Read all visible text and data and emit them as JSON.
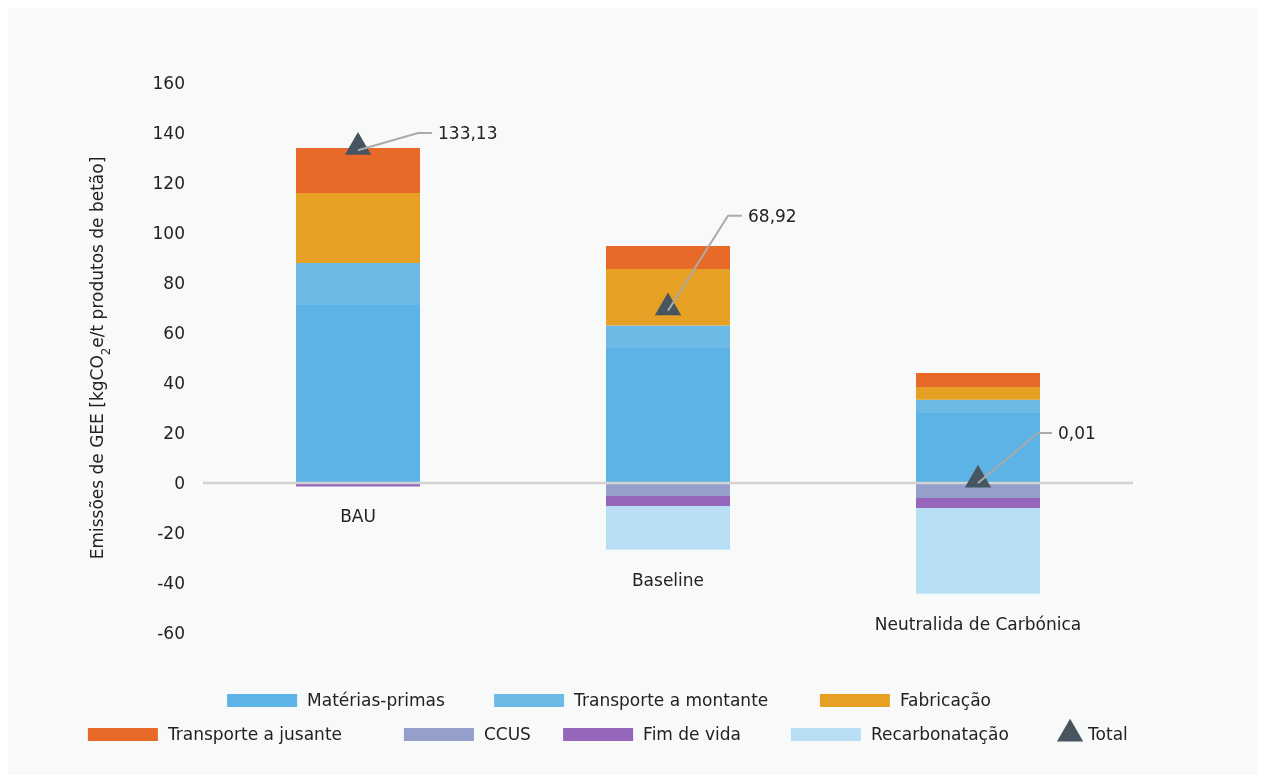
{
  "chart_data": {
    "type": "bar",
    "stacked": true,
    "ylabel": "Emissões de GEE [kgCO$_{2}$e/t produtos de betão]",
    "categories": [
      "BAU",
      "Baseline",
      "Neutralida de Carbónica"
    ],
    "ylim": [
      -60,
      160
    ],
    "yticks": [
      -60,
      -40,
      -20,
      0,
      20,
      40,
      60,
      80,
      100,
      120,
      140,
      160
    ],
    "grid": false,
    "legend": "bottom",
    "ref_lines": [
      {
        "axis": "y",
        "value": 0,
        "color": "#d3d3d3"
      }
    ],
    "series": [
      {
        "name": "Matérias-primas",
        "color": "#5db3e6",
        "values": [
          71.2,
          54,
          28
        ]
      },
      {
        "name": "Transporte a montante",
        "color": "#6bbbe6",
        "values": [
          16.8,
          9,
          5.3
        ]
      },
      {
        "name": "Fabricação",
        "color": "#e6a024",
        "values": [
          28,
          22.6,
          5.1
        ]
      },
      {
        "name": "Transporte a jusante",
        "color": "#e86a28",
        "values": [
          18,
          9.2,
          5.6
        ]
      },
      {
        "name": "CCUS",
        "color": "#94a0cb",
        "values": [
          0,
          -5.2,
          -6
        ]
      },
      {
        "name": "Fim de vida",
        "color": "#9566bb",
        "values": [
          -1.4,
          -4,
          -4
        ]
      },
      {
        "name": "Recarbonatação",
        "color": "#b8def5",
        "values": [
          0,
          -17.5,
          -34.3
        ]
      },
      {
        "name": "Total",
        "type": "scatter",
        "marker": "triangle",
        "color": "#46555f",
        "x": [
          "BAU",
          "Baseline",
          "Neutralida de Carbónica"
        ],
        "values": [
          133.13,
          68.92,
          0.01
        ],
        "value_labels": [
          "133,13",
          "68,92",
          "0,01"
        ]
      }
    ]
  }
}
